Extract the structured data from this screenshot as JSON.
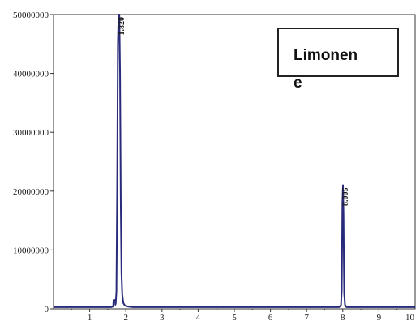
{
  "chart_data": {
    "type": "line",
    "title": "",
    "xlabel": "",
    "ylabel": "",
    "xlim": [
      0,
      10
    ],
    "ylim": [
      0,
      50000000
    ],
    "x_ticks": [
      "1",
      "2",
      "3",
      "4",
      "5",
      "6",
      "7",
      "8",
      "9",
      "10"
    ],
    "y_ticks": [
      "0",
      "10000000",
      "20000000",
      "30000000",
      "40000000",
      "50000000"
    ],
    "grid": false,
    "legend_position": "top-right",
    "legend_lines": [
      "Limonen",
      "e"
    ],
    "colors": {
      "line": "#2a2a7a",
      "axis": "#333333"
    },
    "series": [
      {
        "x": [
          0,
          1.6,
          1.65,
          1.66,
          1.7,
          1.71,
          1.72,
          1.74,
          1.76,
          1.78,
          1.8,
          1.82,
          1.84,
          1.86,
          1.88,
          1.9,
          1.93,
          1.97,
          2.05,
          2.2,
          4,
          6,
          7.9,
          7.95,
          7.97,
          7.98,
          7.99,
          8.005,
          8.02,
          8.03,
          8.04,
          8.06,
          8.1,
          9,
          10
        ],
        "y": [
          300000,
          300000,
          400000,
          1500000,
          1500000,
          700000,
          900000,
          3000000,
          20000000,
          45000000,
          50000000,
          50000000,
          40000000,
          18000000,
          6000000,
          2500000,
          1000000,
          600000,
          400000,
          300000,
          300000,
          300000,
          300000,
          600000,
          3000000,
          10000000,
          18000000,
          21000000,
          16000000,
          8000000,
          2500000,
          700000,
          300000,
          300000,
          300000
        ]
      }
    ],
    "annotations": [
      {
        "text": "1.820",
        "x": 1.82,
        "y": 50000000
      },
      {
        "text": "8.005",
        "x": 8.005,
        "y": 21000000
      }
    ]
  }
}
